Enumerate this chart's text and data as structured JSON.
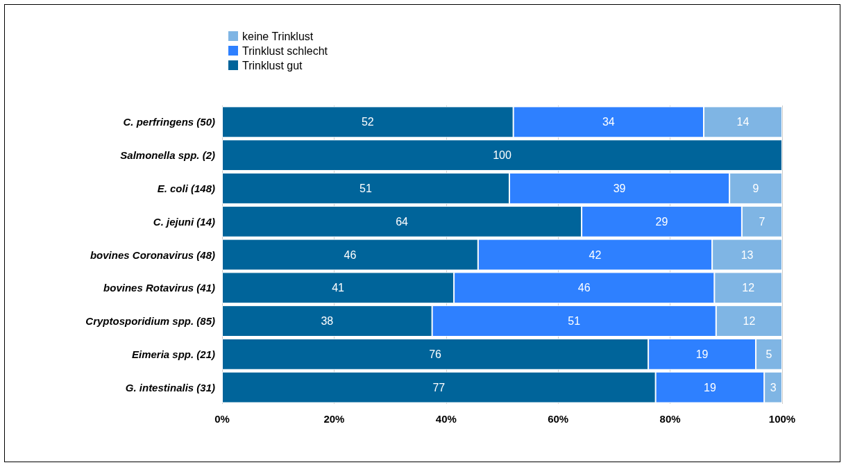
{
  "chart_data": {
    "type": "bar",
    "orientation": "horizontal",
    "stacked": true,
    "categories": [
      "C. perfringens (50)",
      "Salmonella spp. (2)",
      "E. coli (148)",
      "C. jejuni (14)",
      "bovines Coronavirus (48)",
      "bovines Rotavirus (41)",
      "Cryptosporidium spp. (85)",
      "Eimeria spp. (21)",
      "G. intestinalis (31)"
    ],
    "series": [
      {
        "name": "Trinklust gut",
        "color": "#00649a",
        "values": [
          52,
          100,
          51.3,
          64.2,
          45.7,
          41.4,
          37.5,
          76.1,
          77.4
        ],
        "value_labels": [
          "52",
          "100",
          "51",
          "64",
          "46",
          "41",
          "38",
          "76",
          "77"
        ]
      },
      {
        "name": "Trinklust schlecht",
        "color": "#2e80ff",
        "values": [
          34,
          null,
          39.3,
          28.6,
          41.8,
          46.5,
          50.7,
          19.2,
          19.4
        ],
        "value_labels": [
          "34",
          null,
          "39",
          "29",
          "42",
          "46",
          "51",
          "19",
          "19"
        ]
      },
      {
        "name": "keine Trinklust",
        "color": "#7fb5e4",
        "values": [
          14,
          null,
          9.4,
          7.2,
          12.5,
          12.1,
          11.8,
          4.7,
          3.2
        ],
        "value_labels": [
          "14",
          null,
          "9",
          "7",
          "13",
          "12",
          "12",
          "5",
          "3"
        ]
      }
    ],
    "xlim": [
      0,
      100
    ],
    "xticks": [
      {
        "value": 0,
        "label": "0%"
      },
      {
        "value": 20,
        "label": "20%"
      },
      {
        "value": 40,
        "label": "40%"
      },
      {
        "value": 60,
        "label": "60%"
      },
      {
        "value": 80,
        "label": "80%"
      },
      {
        "value": 100,
        "label": "100%"
      }
    ],
    "grid": "x",
    "legend": "top left"
  }
}
